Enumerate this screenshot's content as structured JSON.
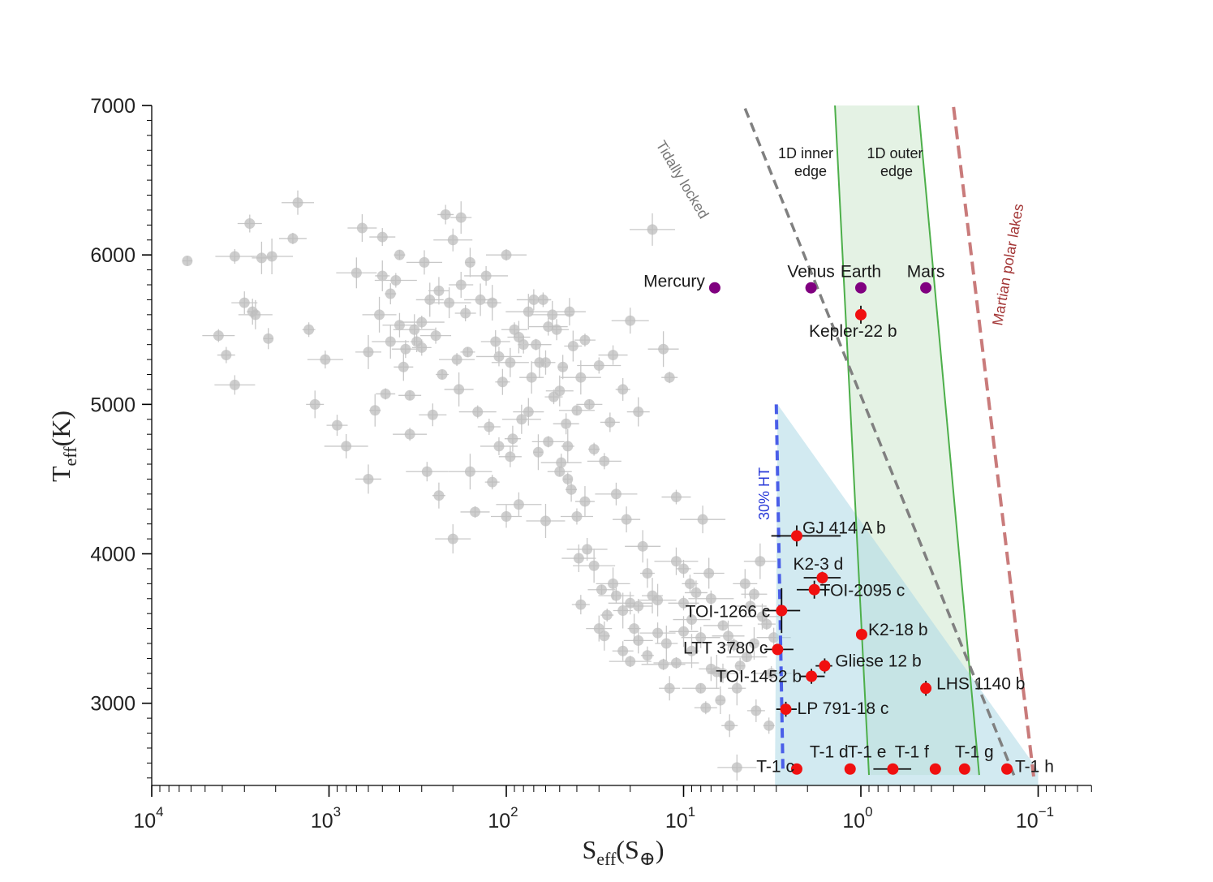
{
  "chart_data": {
    "type": "scatter",
    "xscale": "log",
    "xaxis_reversed": true,
    "xlim": [
      10000,
      0.06
    ],
    "ylim": [
      2450,
      7000
    ],
    "xlabel": {
      "main": "S",
      "sub": "eff",
      "paren_main": "S",
      "paren_sub": "⊕"
    },
    "ylabel": {
      "main": "T",
      "sub": "eff",
      "unit": "(K)"
    },
    "xticks": [
      {
        "label": "10",
        "exp": "4",
        "value": 10000
      },
      {
        "label": "10",
        "exp": "3",
        "value": 1000
      },
      {
        "label": "10",
        "exp": "2",
        "value": 100
      },
      {
        "label": "10",
        "exp": "1",
        "value": 10
      },
      {
        "label": "10",
        "exp": "0",
        "value": 1
      },
      {
        "label": "10",
        "exp": "−1",
        "value": 0.1
      }
    ],
    "yticks": [
      {
        "label": "7000",
        "value": 7000
      },
      {
        "label": "6000",
        "value": 6000
      },
      {
        "label": "5000",
        "value": 5000
      },
      {
        "label": "4000",
        "value": 4000
      },
      {
        "label": "3000",
        "value": 3000
      }
    ],
    "region_labels": {
      "inner_edge": [
        "1D inner",
        "edge"
      ],
      "outer_edge": [
        "1D outer",
        "edge"
      ],
      "tidally_locked": "Tidally locked",
      "martian": "Martian polar lakes",
      "ht30": "30% HT"
    },
    "curves": {
      "tidally_locked": {
        "s": [
          4.5,
          0.135
        ],
        "teff": [
          6980,
          2500
        ],
        "color": "#808080"
      },
      "martian_polar_lakes": {
        "s": [
          0.3,
          0.106
        ],
        "teff": [
          6990,
          2510
        ],
        "color": "#c97b7b"
      },
      "ht30": {
        "s": [
          3.0,
          2.75
        ],
        "teff": [
          5000,
          2530
        ],
        "color": "#4a5ee8"
      },
      "inner_edge": {
        "s": [
          1.4,
          0.9
        ],
        "teff": [
          7000,
          2520
        ],
        "color": "#4daf4a"
      },
      "outer_edge": {
        "s": [
          0.475,
          0.215
        ],
        "teff": [
          7000,
          2520
        ],
        "color": "#4daf4a"
      }
    },
    "solar_system": [
      {
        "name": "Mercury",
        "s": 6.67,
        "teff": 5780
      },
      {
        "name": "Venus",
        "s": 1.91,
        "teff": 5780
      },
      {
        "name": "Earth",
        "s": 1.0,
        "teff": 5780
      },
      {
        "name": "Mars",
        "s": 0.43,
        "teff": 5780
      }
    ],
    "planets": [
      {
        "name": "Kepler-22 b",
        "s": 1.0,
        "teff": 5600,
        "xerr": [
          0,
          0
        ],
        "yerr": 60
      },
      {
        "name": "GJ 414 A b",
        "s": 2.3,
        "teff": 4120,
        "xerr": [
          3.2,
          1.3
        ],
        "yerr": 70
      },
      {
        "name": "K2-3 d",
        "s": 1.65,
        "teff": 3840,
        "xerr": [
          2.1,
          1.3
        ],
        "yerr": 40
      },
      {
        "name": "TOI-2095 c",
        "s": 1.83,
        "teff": 3760,
        "xerr": [
          2.3,
          1.5
        ],
        "yerr": 60
      },
      {
        "name": "TOI-1266 c",
        "s": 2.8,
        "teff": 3620,
        "xerr": [
          3.5,
          2.2
        ],
        "yerr": 150
      },
      {
        "name": "K2-18 b",
        "s": 0.99,
        "teff": 3460,
        "xerr": [
          0,
          0
        ],
        "yerr": 0
      },
      {
        "name": "LTT 3780 c",
        "s": 2.95,
        "teff": 3360,
        "xerr": [
          3.5,
          2.4
        ],
        "yerr": 0
      },
      {
        "name": "Gliese 12 b",
        "s": 1.6,
        "teff": 3250,
        "xerr": [
          1.8,
          1.45
        ],
        "yerr": 50
      },
      {
        "name": "TOI-1452 b",
        "s": 1.9,
        "teff": 3180,
        "xerr": [
          2.2,
          1.6
        ],
        "yerr": 50
      },
      {
        "name": "LHS 1140 b",
        "s": 0.43,
        "teff": 3100,
        "xerr": [
          0,
          0
        ],
        "yerr": 50
      },
      {
        "name": "LP 791-18 c",
        "s": 2.65,
        "teff": 2960,
        "xerr": [
          3.0,
          2.3
        ],
        "yerr": 50
      },
      {
        "name": "T-1 c",
        "s": 2.3,
        "teff": 2560,
        "xerr": [
          0,
          0
        ],
        "yerr": 0
      },
      {
        "name": "T-1 d",
        "s": 1.15,
        "teff": 2560,
        "xerr": [
          0,
          0
        ],
        "yerr": 0
      },
      {
        "name": "T-1 e",
        "s": 0.66,
        "teff": 2560,
        "xerr": [
          0.85,
          0.52
        ],
        "yerr": 0
      },
      {
        "name": "T-1 f",
        "s": 0.38,
        "teff": 2560,
        "xerr": [
          0,
          0
        ],
        "yerr": 0
      },
      {
        "name": "T-1 g",
        "s": 0.26,
        "teff": 2560,
        "xerr": [
          0,
          0
        ],
        "yerr": 0
      },
      {
        "name": "T-1 h",
        "s": 0.15,
        "teff": 2560,
        "xerr": [
          0,
          0
        ],
        "yerr": 0
      }
    ],
    "background_points": [
      [
        6300,
        5960
      ],
      [
        4200,
        5460
      ],
      [
        3800,
        5330
      ],
      [
        3400,
        5130
      ],
      [
        3000,
        5680
      ],
      [
        2700,
        5620
      ],
      [
        2600,
        5600
      ],
      [
        2400,
        5980
      ],
      [
        2100,
        5990
      ],
      [
        1600,
        6110
      ],
      [
        1300,
        5500
      ],
      [
        1050,
        5300
      ],
      [
        900,
        4860
      ],
      [
        800,
        4720
      ],
      [
        650,
        6180
      ],
      [
        500,
        5860
      ],
      [
        450,
        5420
      ],
      [
        350,
        5060
      ],
      [
        300,
        5550
      ],
      [
        250,
        5460
      ],
      [
        220,
        6270
      ],
      [
        200,
        6100
      ],
      [
        180,
        5800
      ],
      [
        160,
        5950
      ],
      [
        140,
        5700
      ],
      [
        120,
        5680
      ],
      [
        100,
        6000
      ],
      [
        90,
        5500
      ],
      [
        80,
        5400
      ],
      [
        70,
        5700
      ],
      [
        60,
        5280
      ],
      [
        55,
        5600
      ],
      [
        50,
        5090
      ],
      [
        45,
        4720
      ],
      [
        40,
        4960
      ],
      [
        36,
        5430
      ],
      [
        30,
        5260
      ],
      [
        25,
        5330
      ],
      [
        22,
        5100
      ],
      [
        20,
        5560
      ],
      [
        18,
        4950
      ],
      [
        15,
        6170
      ],
      [
        13,
        5370
      ],
      [
        12,
        5180
      ],
      [
        3400,
        5990
      ],
      [
        2800,
        6210
      ],
      [
        2200,
        5440
      ],
      [
        1500,
        6350
      ],
      [
        1200,
        5000
      ],
      [
        700,
        5880
      ],
      [
        600,
        5350
      ],
      [
        400,
        6000
      ],
      [
        350,
        4800
      ],
      [
        300,
        5380
      ],
      [
        280,
        4550
      ],
      [
        260,
        4930
      ],
      [
        240,
        4390
      ],
      [
        200,
        4100
      ],
      [
        180,
        6250
      ],
      [
        160,
        4550
      ],
      [
        150,
        4280
      ],
      [
        120,
        4480
      ],
      [
        110,
        4720
      ],
      [
        95,
        4650
      ],
      [
        85,
        4330
      ],
      [
        75,
        4950
      ],
      [
        65,
        5280
      ],
      [
        60,
        4220
      ],
      [
        50,
        4550
      ],
      [
        45,
        4500
      ],
      [
        40,
        4250
      ],
      [
        38,
        3660
      ],
      [
        35,
        4030
      ],
      [
        30,
        3500
      ],
      [
        28,
        3450
      ],
      [
        25,
        3800
      ],
      [
        22,
        3620
      ],
      [
        20,
        3280
      ],
      [
        18,
        3650
      ],
      [
        16,
        3320
      ],
      [
        14,
        3470
      ],
      [
        12,
        3100
      ],
      [
        11,
        3950
      ],
      [
        10,
        3480
      ],
      [
        9,
        3350
      ],
      [
        8,
        3100
      ],
      [
        7.5,
        2970
      ],
      [
        7,
        3700
      ],
      [
        6,
        3200
      ],
      [
        5.5,
        2850
      ],
      [
        5,
        2570
      ],
      [
        4.5,
        3800
      ],
      [
        4,
        3400
      ],
      [
        3.7,
        3950
      ],
      [
        3.4,
        3530
      ],
      [
        3.2,
        3200
      ],
      [
        500,
        6120
      ],
      [
        450,
        5740
      ],
      [
        400,
        5530
      ],
      [
        380,
        5250
      ],
      [
        330,
        5500
      ],
      [
        270,
        5700
      ],
      [
        230,
        5200
      ],
      [
        190,
        5300
      ],
      [
        170,
        5610
      ],
      [
        130,
        5860
      ],
      [
        115,
        5420
      ],
      [
        105,
        5150
      ],
      [
        95,
        5280
      ],
      [
        85,
        5450
      ],
      [
        75,
        5620
      ],
      [
        68,
        5400
      ],
      [
        62,
        5700
      ],
      [
        58,
        5520
      ],
      [
        52,
        5500
      ],
      [
        48,
        5250
      ],
      [
        44,
        5620
      ],
      [
        42,
        5390
      ],
      [
        38,
        5180
      ],
      [
        34,
        5000
      ],
      [
        32,
        4700
      ],
      [
        28,
        4620
      ],
      [
        26,
        4880
      ],
      [
        24,
        4400
      ],
      [
        21,
        4230
      ],
      [
        19,
        3500
      ],
      [
        17,
        4050
      ],
      [
        15,
        3720
      ],
      [
        13,
        3260
      ],
      [
        11,
        4380
      ],
      [
        10,
        3900
      ],
      [
        9,
        3560
      ],
      [
        8.5,
        3740
      ],
      [
        7.8,
        4230
      ],
      [
        7.2,
        3870
      ],
      [
        6.5,
        3210
      ],
      [
        6,
        3520
      ],
      [
        5.2,
        3390
      ],
      [
        4.8,
        3250
      ],
      [
        4.2,
        3650
      ],
      [
        3.9,
        2950
      ],
      [
        3.6,
        3580
      ],
      [
        600,
        4500
      ],
      [
        550,
        4960
      ],
      [
        520,
        5600
      ],
      [
        480,
        5070
      ],
      [
        420,
        5830
      ],
      [
        370,
        5370
      ],
      [
        320,
        5420
      ],
      [
        290,
        5950
      ],
      [
        240,
        5760
      ],
      [
        210,
        5680
      ],
      [
        185,
        5100
      ],
      [
        165,
        5350
      ],
      [
        145,
        4950
      ],
      [
        125,
        4850
      ],
      [
        110,
        5320
      ],
      [
        100,
        4250
      ],
      [
        92,
        4770
      ],
      [
        82,
        4900
      ],
      [
        72,
        5180
      ],
      [
        66,
        4680
      ],
      [
        58,
        4750
      ],
      [
        54,
        5050
      ],
      [
        49,
        4610
      ],
      [
        46,
        4870
      ],
      [
        43,
        4430
      ],
      [
        39,
        3970
      ],
      [
        36,
        4350
      ],
      [
        32,
        3920
      ],
      [
        29,
        3760
      ],
      [
        27,
        3590
      ],
      [
        24,
        3720
      ],
      [
        22,
        3350
      ],
      [
        20,
        3670
      ],
      [
        18,
        3420
      ],
      [
        16,
        3870
      ],
      [
        14,
        3690
      ],
      [
        12.5,
        3400
      ],
      [
        11,
        3270
      ],
      [
        10,
        3670
      ],
      [
        9.2,
        3800
      ],
      [
        8,
        3440
      ],
      [
        7,
        3230
      ],
      [
        6.2,
        3020
      ],
      [
        5.6,
        3450
      ],
      [
        5,
        3100
      ],
      [
        4.4,
        3310
      ],
      [
        4.0,
        3730
      ],
      [
        3.3,
        2850
      ],
      [
        3.1,
        3440
      ]
    ]
  }
}
